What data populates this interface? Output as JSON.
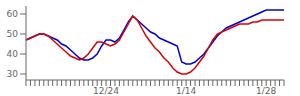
{
  "chart_data": {
    "type": "line",
    "categories": [
      null,
      null,
      null,
      null,
      null,
      null,
      null,
      null,
      null,
      null,
      null,
      null,
      null,
      null,
      null,
      null,
      null,
      null,
      "12/24",
      null,
      null,
      null,
      null,
      null,
      null,
      null,
      null,
      null,
      null,
      null,
      null,
      null,
      null,
      null,
      null,
      null,
      "1/14",
      null,
      null,
      null,
      null,
      null,
      null,
      null,
      null,
      null,
      null,
      null,
      null,
      null,
      null,
      null,
      null,
      null,
      "1/28",
      null,
      null,
      null,
      null
    ],
    "series": [
      {
        "color": "#0000dd",
        "values": [
          47,
          48,
          49,
          50,
          50,
          49,
          48,
          47,
          45,
          44,
          42,
          40,
          38,
          37,
          37,
          38,
          40,
          44,
          47,
          47,
          46,
          48,
          52,
          56,
          59,
          57,
          55,
          53,
          51,
          50,
          48,
          47,
          46,
          45,
          44,
          36,
          35,
          35,
          36,
          38,
          40,
          43,
          46,
          49,
          51,
          53,
          54,
          55,
          56,
          57,
          58,
          59,
          60,
          61,
          62,
          62,
          62,
          62,
          62
        ]
      },
      {
        "color": "#dd0000",
        "values": [
          47,
          48,
          49,
          50,
          50,
          49,
          47,
          45,
          43,
          41,
          39,
          38,
          37,
          38,
          40,
          43,
          46,
          46,
          45,
          44,
          45,
          47,
          51,
          55,
          59,
          57,
          53,
          49,
          46,
          43,
          41,
          38,
          36,
          33,
          31,
          30,
          30,
          31,
          33,
          36,
          39,
          43,
          47,
          50,
          51,
          52,
          53,
          54,
          55,
          55,
          55,
          56,
          56,
          57,
          57,
          57,
          57,
          57,
          57
        ]
      }
    ],
    "ylim": [
      27,
      64
    ],
    "yticks": [
      30,
      40,
      50,
      60
    ],
    "grid": false
  }
}
